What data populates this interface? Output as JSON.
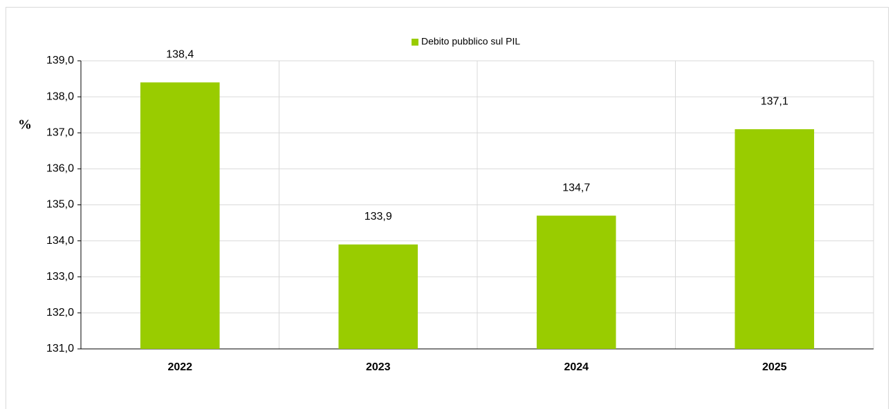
{
  "chart_data": {
    "type": "bar",
    "legend": "Debito pubblico sul PIL",
    "y_label": "%",
    "categories": [
      "2022",
      "2023",
      "2024",
      "2025"
    ],
    "values": [
      138.4,
      133.9,
      134.7,
      137.1
    ],
    "value_labels": [
      "138,4",
      "133,9",
      "134,7",
      "137,1"
    ],
    "color": "#99cc00",
    "ylim": [
      131,
      139
    ],
    "yticks": [
      {
        "value": 131,
        "label": "131,0"
      },
      {
        "value": 132,
        "label": "132,0"
      },
      {
        "value": 133,
        "label": "133,0"
      },
      {
        "value": 134,
        "label": "134,0"
      },
      {
        "value": 135,
        "label": "135,0"
      },
      {
        "value": 136,
        "label": "136,0"
      },
      {
        "value": 137,
        "label": "137,0"
      },
      {
        "value": 138,
        "label": "138,0"
      },
      {
        "value": 139,
        "label": "139,0"
      }
    ],
    "grid": true,
    "legend_position": "top"
  }
}
